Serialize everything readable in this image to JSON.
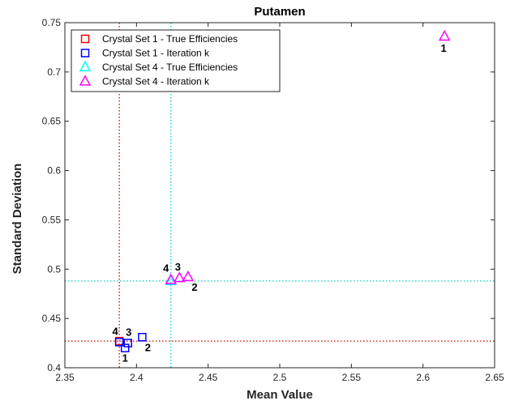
{
  "chart_data": {
    "type": "scatter",
    "title": "Putamen",
    "xlabel": "Mean Value",
    "ylabel": "Standard Deviation",
    "xlim": [
      2.35,
      2.65
    ],
    "ylim": [
      0.4,
      0.75
    ],
    "xticks": [
      "2.35",
      "2.4",
      "2.45",
      "2.5",
      "2.55",
      "2.6",
      "2.65"
    ],
    "yticks": [
      "0.4",
      "0.45",
      "0.5",
      "0.55",
      "0.6",
      "0.65",
      "0.7",
      "0.75"
    ],
    "legend_position": "top-left",
    "series": [
      {
        "name": "Crystal Set 1 - True Efficiencies",
        "marker": "square",
        "color": "#ff0000",
        "points": [
          {
            "x": 2.388,
            "y": 0.427,
            "label": ""
          }
        ]
      },
      {
        "name": "Crystal Set 1 - Iteration k",
        "marker": "square",
        "color": "#0000ff",
        "points": [
          {
            "x": 2.392,
            "y": 0.42,
            "label": "1"
          },
          {
            "x": 2.404,
            "y": 0.431,
            "label": "2"
          },
          {
            "x": 2.394,
            "y": 0.425,
            "label": "3"
          },
          {
            "x": 2.388,
            "y": 0.426,
            "label": "4"
          }
        ]
      },
      {
        "name": "Crystal Set 4 - True Efficiencies",
        "marker": "triangle",
        "color": "#00ffff",
        "points": [
          {
            "x": 2.424,
            "y": 0.488,
            "label": ""
          }
        ]
      },
      {
        "name": "Crystal Set 4 - Iteration k",
        "marker": "triangle",
        "color": "#ff00ff",
        "points": [
          {
            "x": 2.615,
            "y": 0.736,
            "label": "1"
          },
          {
            "x": 2.436,
            "y": 0.492,
            "label": "2"
          },
          {
            "x": 2.43,
            "y": 0.491,
            "label": "3"
          },
          {
            "x": 2.424,
            "y": 0.489,
            "label": "4"
          }
        ]
      }
    ],
    "reference_lines": [
      {
        "orientation": "vertical",
        "value": 2.388,
        "color": "#cc0000"
      },
      {
        "orientation": "horizontal",
        "value": 0.427,
        "color": "#cc0000"
      },
      {
        "orientation": "vertical",
        "value": 2.424,
        "color": "#00cccc"
      },
      {
        "orientation": "horizontal",
        "value": 0.488,
        "color": "#00cccc"
      }
    ]
  }
}
